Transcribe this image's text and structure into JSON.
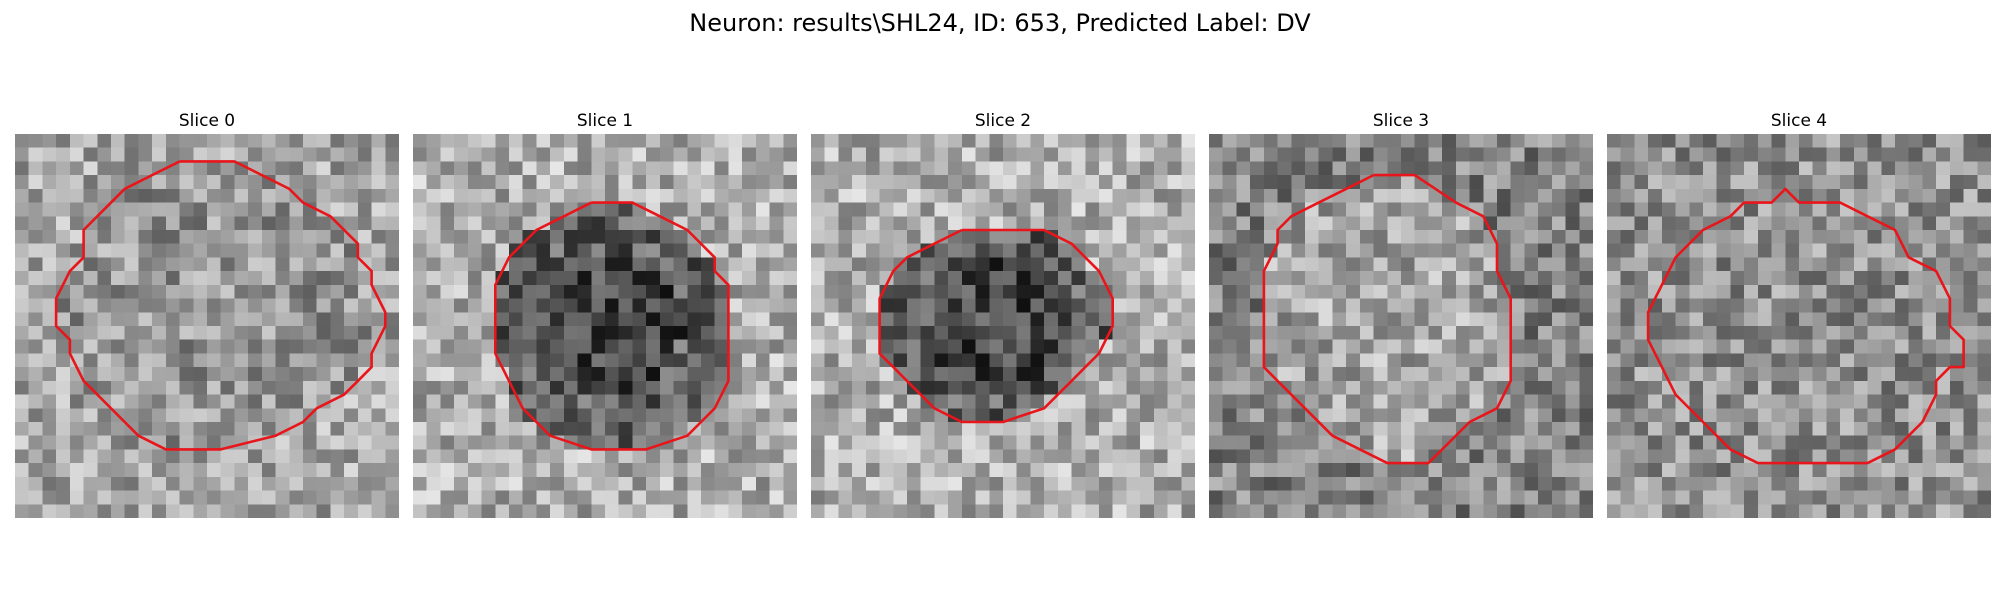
{
  "figure": {
    "title": "Neuron: results\\SHL24, ID: 653, Predicted Label: DV"
  },
  "contour_color": "#e8151b",
  "slices": [
    {
      "title": "Slice 0",
      "contour": [
        [
          12,
          2
        ],
        [
          16,
          2
        ],
        [
          20,
          4
        ],
        [
          21,
          5
        ],
        [
          23,
          6
        ],
        [
          25,
          8
        ],
        [
          25,
          9
        ],
        [
          26,
          10
        ],
        [
          26,
          11
        ],
        [
          27,
          13
        ],
        [
          27,
          14
        ],
        [
          26,
          16
        ],
        [
          26,
          17
        ],
        [
          25,
          18
        ],
        [
          24,
          19
        ],
        [
          22,
          20
        ],
        [
          21,
          21
        ],
        [
          19,
          22
        ],
        [
          15,
          23
        ],
        [
          11,
          23
        ],
        [
          9,
          22
        ],
        [
          8,
          21
        ],
        [
          6,
          19
        ],
        [
          5,
          18
        ],
        [
          4,
          16
        ],
        [
          4,
          15
        ],
        [
          3,
          14
        ],
        [
          3,
          12
        ],
        [
          4,
          10
        ],
        [
          5,
          9
        ],
        [
          5,
          7
        ],
        [
          7,
          5
        ],
        [
          8,
          4
        ],
        [
          10,
          3
        ],
        [
          12,
          2
        ]
      ],
      "shading": "ring-light",
      "seed": 11
    },
    {
      "title": "Slice 1",
      "contour": [
        [
          13,
          5
        ],
        [
          16,
          5
        ],
        [
          18,
          6
        ],
        [
          20,
          7
        ],
        [
          22,
          9
        ],
        [
          22,
          10
        ],
        [
          23,
          11
        ],
        [
          23,
          14
        ],
        [
          23,
          16
        ],
        [
          23,
          18
        ],
        [
          22,
          20
        ],
        [
          21,
          21
        ],
        [
          20,
          22
        ],
        [
          17,
          23
        ],
        [
          13,
          23
        ],
        [
          10,
          22
        ],
        [
          9,
          21
        ],
        [
          8,
          20
        ],
        [
          7,
          18
        ],
        [
          6,
          16
        ],
        [
          6,
          14
        ],
        [
          6,
          11
        ],
        [
          7,
          9
        ],
        [
          8,
          8
        ],
        [
          9,
          7
        ],
        [
          11,
          6
        ],
        [
          13,
          5
        ]
      ],
      "shading": "dark-core",
      "seed": 23
    },
    {
      "title": "Slice 2",
      "contour": [
        [
          11,
          7
        ],
        [
          17,
          7
        ],
        [
          19,
          8
        ],
        [
          20,
          9
        ],
        [
          21,
          10
        ],
        [
          22,
          12
        ],
        [
          22,
          14
        ],
        [
          21,
          16
        ],
        [
          20,
          17
        ],
        [
          19,
          18
        ],
        [
          18,
          19
        ],
        [
          17,
          20
        ],
        [
          14,
          21
        ],
        [
          11,
          21
        ],
        [
          9,
          20
        ],
        [
          8,
          19
        ],
        [
          7,
          18
        ],
        [
          6,
          17
        ],
        [
          5,
          16
        ],
        [
          5,
          12
        ],
        [
          6,
          10
        ],
        [
          7,
          9
        ],
        [
          9,
          8
        ],
        [
          11,
          7
        ]
      ],
      "shading": "dark-core",
      "seed": 37
    },
    {
      "title": "Slice 3",
      "contour": [
        [
          12,
          3
        ],
        [
          15,
          3
        ],
        [
          18,
          5
        ],
        [
          20,
          6
        ],
        [
          21,
          8
        ],
        [
          21,
          10
        ],
        [
          22,
          12
        ],
        [
          22,
          16
        ],
        [
          22,
          18
        ],
        [
          21,
          20
        ],
        [
          19,
          21
        ],
        [
          17,
          23
        ],
        [
          16,
          24
        ],
        [
          13,
          24
        ],
        [
          11,
          23
        ],
        [
          9,
          22
        ],
        [
          7,
          20
        ],
        [
          5,
          18
        ],
        [
          4,
          17
        ],
        [
          4,
          15
        ],
        [
          4,
          13
        ],
        [
          4,
          10
        ],
        [
          5,
          8
        ],
        [
          5,
          7
        ],
        [
          6,
          6
        ],
        [
          8,
          5
        ],
        [
          10,
          4
        ],
        [
          12,
          3
        ]
      ],
      "shading": "light-core",
      "seed": 51
    },
    {
      "title": "Slice 4",
      "contour": [
        [
          10,
          5
        ],
        [
          12,
          5
        ],
        [
          13,
          4
        ],
        [
          14,
          5
        ],
        [
          17,
          5
        ],
        [
          19,
          6
        ],
        [
          21,
          7
        ],
        [
          22,
          9
        ],
        [
          24,
          10
        ],
        [
          25,
          12
        ],
        [
          25,
          14
        ],
        [
          26,
          15
        ],
        [
          26,
          17
        ],
        [
          25,
          17
        ],
        [
          24,
          18
        ],
        [
          24,
          19
        ],
        [
          23,
          21
        ],
        [
          22,
          22
        ],
        [
          21,
          23
        ],
        [
          19,
          24
        ],
        [
          15,
          24
        ],
        [
          11,
          24
        ],
        [
          9,
          23
        ],
        [
          7,
          21
        ],
        [
          5,
          19
        ],
        [
          4,
          17
        ],
        [
          3,
          15
        ],
        [
          3,
          13
        ],
        [
          4,
          11
        ],
        [
          5,
          9
        ],
        [
          7,
          7
        ],
        [
          9,
          6
        ],
        [
          10,
          5
        ]
      ],
      "shading": "uniform",
      "seed": 67
    }
  ]
}
